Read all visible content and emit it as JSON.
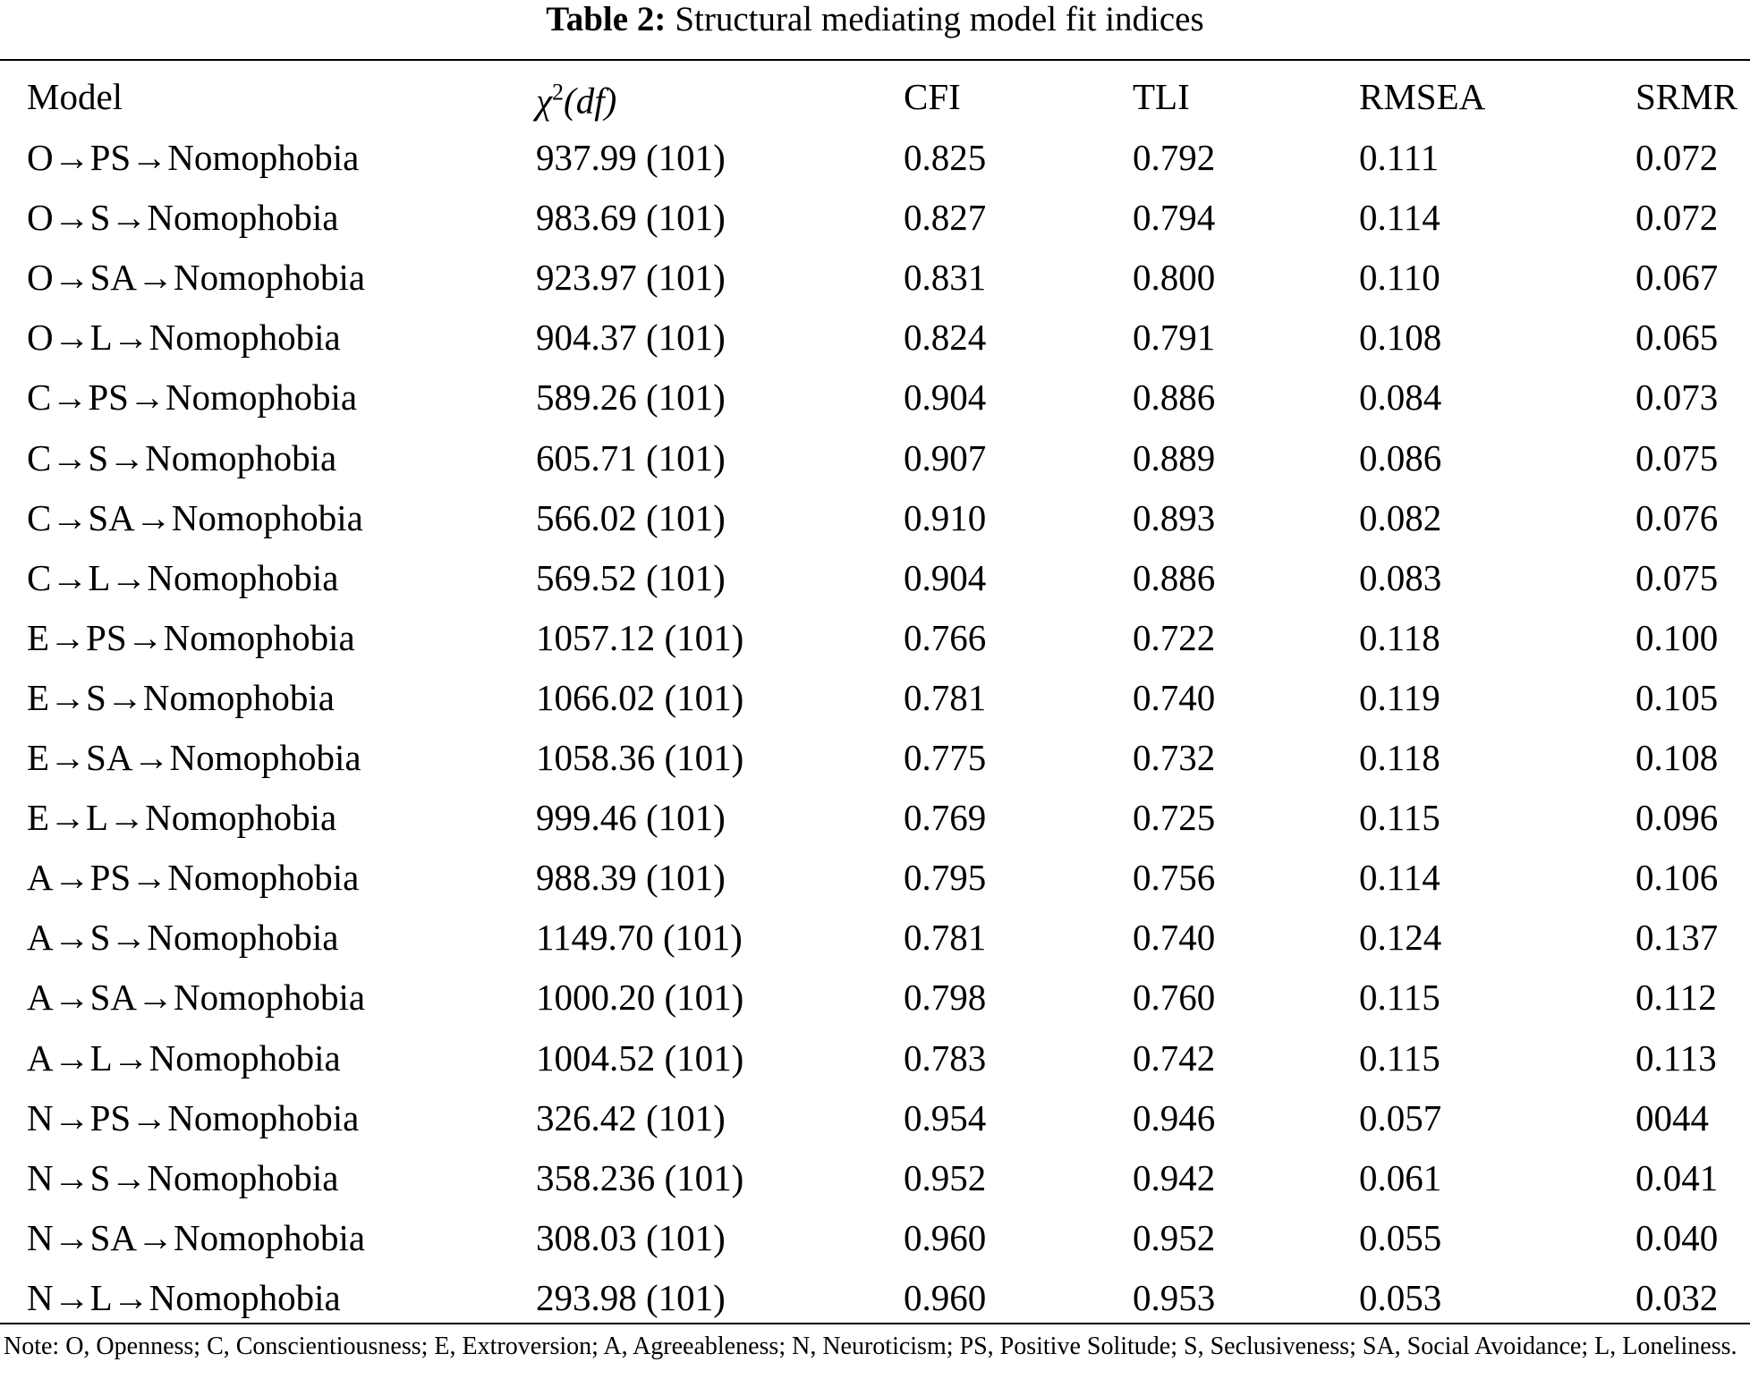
{
  "title": {
    "label": "Table 2:",
    "text": "Structural mediating model fit indices"
  },
  "table": {
    "header": [
      "Model",
      {
        "symbol": "χ",
        "sup": "2",
        "rest": "(df)"
      },
      "CFI",
      "TLI",
      "RMSEA",
      "SRMR"
    ],
    "rows": [
      [
        "O→PS→Nomophobia",
        "937.99 (101)",
        "0.825",
        "0.792",
        "0.111",
        "0.072"
      ],
      [
        "O→S→Nomophobia",
        "983.69 (101)",
        "0.827",
        "0.794",
        "0.114",
        "0.072"
      ],
      [
        "O→SA→Nomophobia",
        "923.97 (101)",
        "0.831",
        "0.800",
        "0.110",
        "0.067"
      ],
      [
        "O→L→Nomophobia",
        "904.37 (101)",
        "0.824",
        "0.791",
        "0.108",
        "0.065"
      ],
      [
        "C→PS→Nomophobia",
        "589.26 (101)",
        "0.904",
        "0.886",
        "0.084",
        "0.073"
      ],
      [
        "C→S→Nomophobia",
        "605.71 (101)",
        "0.907",
        "0.889",
        "0.086",
        "0.075"
      ],
      [
        "C→SA→Nomophobia",
        "566.02 (101)",
        "0.910",
        "0.893",
        "0.082",
        "0.076"
      ],
      [
        "C→L→Nomophobia",
        "569.52 (101)",
        "0.904",
        "0.886",
        "0.083",
        "0.075"
      ],
      [
        "E→PS→Nomophobia",
        "1057.12 (101)",
        "0.766",
        "0.722",
        "0.118",
        "0.100"
      ],
      [
        "E→S→Nomophobia",
        "1066.02 (101)",
        "0.781",
        "0.740",
        "0.119",
        "0.105"
      ],
      [
        "E→SA→Nomophobia",
        "1058.36 (101)",
        "0.775",
        "0.732",
        "0.118",
        "0.108"
      ],
      [
        "E→L→Nomophobia",
        "999.46 (101)",
        "0.769",
        "0.725",
        "0.115",
        "0.096"
      ],
      [
        "A→PS→Nomophobia",
        "988.39 (101)",
        "0.795",
        "0.756",
        "0.114",
        "0.106"
      ],
      [
        "A→S→Nomophobia",
        "1149.70 (101)",
        "0.781",
        "0.740",
        "0.124",
        "0.137"
      ],
      [
        "A→SA→Nomophobia",
        "1000.20 (101)",
        "0.798",
        "0.760",
        "0.115",
        "0.112"
      ],
      [
        "A→L→Nomophobia",
        "1004.52 (101)",
        "0.783",
        "0.742",
        "0.115",
        "0.113"
      ],
      [
        "N→PS→Nomophobia",
        "326.42 (101)",
        "0.954",
        "0.946",
        "0.057",
        "0044"
      ],
      [
        "N→S→Nomophobia",
        "358.236 (101)",
        "0.952",
        "0.942",
        "0.061",
        "0.041"
      ],
      [
        "N→SA→Nomophobia",
        "308.03 (101)",
        "0.960",
        "0.952",
        "0.055",
        "0.040"
      ],
      [
        "N→L→Nomophobia",
        "293.98 (101)",
        "0.960",
        "0.953",
        "0.053",
        "0.032"
      ]
    ]
  },
  "note": "Note: O, Openness; C, Conscientiousness; E, Extroversion; A, Agreeableness; N, Neuroticism; PS, Positive Solitude; S, Seclusiveness; SA, Social Avoidance; L, Loneliness."
}
